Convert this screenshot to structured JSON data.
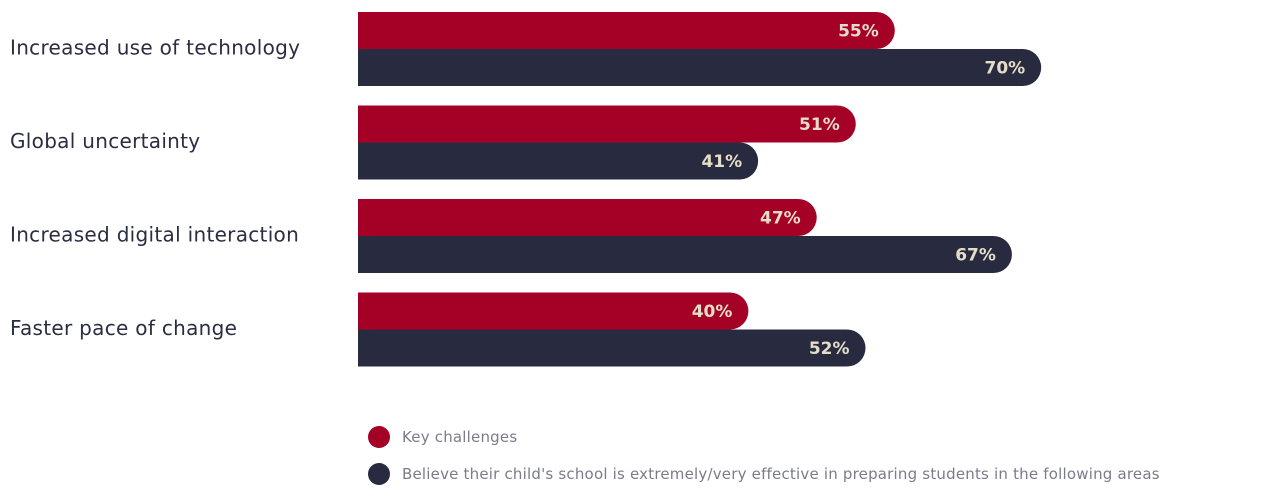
{
  "chart_data": {
    "type": "bar",
    "orientation": "horizontal",
    "categories": [
      "Increased use of technology",
      "Global uncertainty",
      "Increased digital interaction",
      "Faster pace of change"
    ],
    "series": [
      {
        "name": "Key challenges",
        "values": [
          55,
          51,
          47,
          40
        ],
        "labels": [
          "55%",
          "51%",
          "47%",
          "40%"
        ],
        "color": "#a50026"
      },
      {
        "name": "Believe their child's school is extremely/very effective in preparing students in the following areas",
        "values": [
          70,
          41,
          67,
          52
        ],
        "labels": [
          "70%",
          "41%",
          "67%",
          "52%"
        ],
        "color": "#282b40"
      }
    ],
    "xlim": [
      0,
      100
    ],
    "grid": false,
    "legend_position": "bottom",
    "value_label_color": "#e6ddc9"
  }
}
